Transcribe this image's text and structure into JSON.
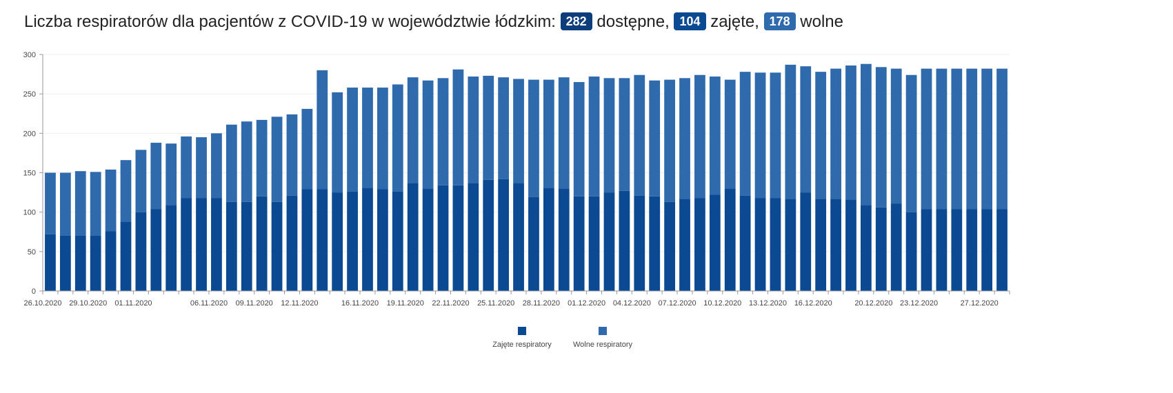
{
  "headline": {
    "text_before": "Liczba respiratorów dla pacjentów z COVID-19 w województwie łódzkim:",
    "available_value": "282",
    "available_label": "dostępne,",
    "occupied_value": "104",
    "occupied_label": "zajęte,",
    "free_value": "178",
    "free_label": "wolne"
  },
  "colors": {
    "occupied": "#0b4a93",
    "free": "#2e6aac",
    "badge_available": "#0d3d7a",
    "badge_occupied": "#0b4a93",
    "badge_free": "#2e6aac"
  },
  "chart_data": {
    "type": "bar",
    "stacked": true,
    "ylim": [
      0,
      300
    ],
    "yticks": [
      0,
      50,
      100,
      150,
      200,
      250,
      300
    ],
    "grid": true,
    "legend_position": "bottom-center",
    "categories": [
      "26.10.2020",
      "27.10.2020",
      "28.10.2020",
      "29.10.2020",
      "30.10.2020",
      "31.10.2020",
      "01.11.2020",
      "02.11.2020",
      "03.11.2020",
      "04.11.2020",
      "05.11.2020",
      "06.11.2020",
      "07.11.2020",
      "08.11.2020",
      "09.11.2020",
      "10.11.2020",
      "11.11.2020",
      "12.11.2020",
      "13.11.2020",
      "14.11.2020",
      "15.11.2020",
      "16.11.2020",
      "17.11.2020",
      "18.11.2020",
      "19.11.2020",
      "20.11.2020",
      "21.11.2020",
      "22.11.2020",
      "23.11.2020",
      "24.11.2020",
      "25.11.2020",
      "26.11.2020",
      "27.11.2020",
      "28.11.2020",
      "29.11.2020",
      "30.11.2020",
      "01.12.2020",
      "02.12.2020",
      "03.12.2020",
      "04.12.2020",
      "05.12.2020",
      "06.12.2020",
      "07.12.2020",
      "08.12.2020",
      "09.12.2020",
      "10.12.2020",
      "11.12.2020",
      "12.12.2020",
      "13.12.2020",
      "14.12.2020",
      "15.12.2020",
      "16.12.2020",
      "17.12.2020",
      "18.12.2020",
      "19.12.2020",
      "20.12.2020",
      "21.12.2020",
      "22.12.2020",
      "23.12.2020",
      "24.12.2020",
      "25.12.2020",
      "26.12.2020",
      "27.12.2020",
      "28.12.2020"
    ],
    "xtick_labels": [
      "26.10.2020",
      "29.10.2020",
      "01.11.2020",
      "06.11.2020",
      "09.11.2020",
      "12.11.2020",
      "16.11.2020",
      "19.11.2020",
      "22.11.2020",
      "25.11.2020",
      "28.11.2020",
      "01.12.2020",
      "04.12.2020",
      "07.12.2020",
      "10.12.2020",
      "13.12.2020",
      "16.12.2020",
      "20.12.2020",
      "23.12.2020",
      "27.12.2020"
    ],
    "series": [
      {
        "name": "Zajęte respiratory",
        "values": [
          72,
          70,
          70,
          70,
          76,
          88,
          100,
          104,
          109,
          118,
          118,
          118,
          113,
          113,
          120,
          113,
          121,
          129,
          129,
          125,
          126,
          131,
          129,
          126,
          137,
          130,
          134,
          134,
          137,
          141,
          142,
          137,
          119,
          131,
          130,
          120,
          120,
          125,
          127,
          121,
          120,
          113,
          117,
          118,
          122,
          130,
          121,
          118,
          118,
          117,
          125,
          117,
          117,
          116,
          109,
          106,
          111,
          100,
          104,
          104,
          104,
          104,
          104,
          104
        ]
      },
      {
        "name": "Wolne respiratory",
        "values": [
          78,
          80,
          82,
          81,
          78,
          78,
          79,
          84,
          78,
          78,
          77,
          82,
          98,
          102,
          97,
          108,
          103,
          102,
          151,
          127,
          132,
          127,
          129,
          136,
          134,
          137,
          136,
          147,
          135,
          132,
          129,
          132,
          149,
          137,
          141,
          145,
          152,
          145,
          143,
          153,
          147,
          155,
          153,
          156,
          150,
          138,
          157,
          159,
          159,
          170,
          160,
          161,
          165,
          170,
          179,
          178,
          171,
          174,
          178,
          178,
          178,
          178,
          178,
          178
        ]
      }
    ]
  }
}
